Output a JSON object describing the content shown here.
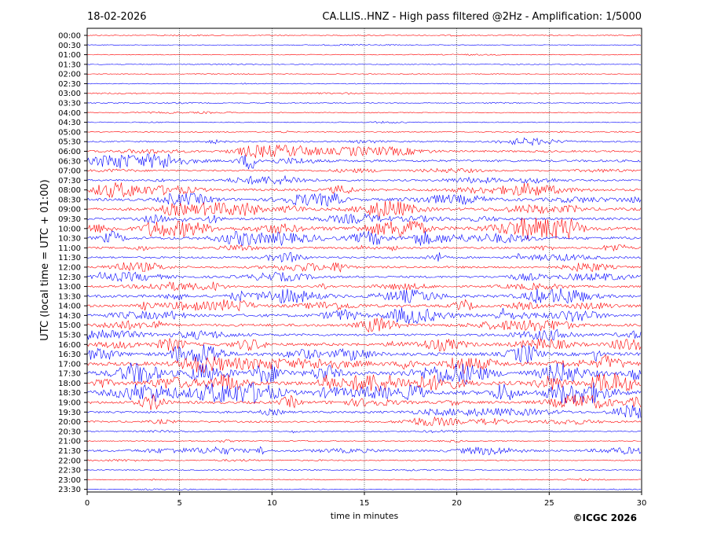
{
  "header": {
    "date": "18-02-2026",
    "title": "CA.LLIS..HNZ - High pass filtered @2Hz - Amplification: 1/5000"
  },
  "footer": {
    "copyright": "©ICGC 2026"
  },
  "chart_data": {
    "type": "line",
    "title": "CA.LLIS..HNZ - High pass filtered @2Hz - Amplification: 1/5000",
    "xlabel": "time in minutes",
    "ylabel": "UTC (local time = UTC + 01:00)",
    "xlim": [
      0,
      30
    ],
    "x_ticks": [
      "0",
      "5",
      "10",
      "15",
      "20",
      "25",
      "30"
    ],
    "x_grid": "dotted vertical lines at 5, 10, 15, 20, 25",
    "y_ticks": [
      "00:00",
      "00:30",
      "01:00",
      "01:30",
      "02:00",
      "02:30",
      "03:00",
      "03:30",
      "04:00",
      "04:30",
      "05:00",
      "05:30",
      "06:00",
      "06:30",
      "07:00",
      "07:30",
      "08:00",
      "08:30",
      "09:00",
      "09:30",
      "10:00",
      "10:30",
      "11:00",
      "11:30",
      "12:00",
      "12:30",
      "13:00",
      "13:30",
      "14:00",
      "14:30",
      "15:00",
      "15:30",
      "16:00",
      "16:30",
      "17:00",
      "17:30",
      "18:00",
      "18:30",
      "19:00",
      "19:30",
      "20:00",
      "20:30",
      "21:00",
      "21:30",
      "22:00",
      "22:30",
      "23:00",
      "23:30"
    ],
    "trace_colors": [
      "#ff0000",
      "#0000ff"
    ],
    "activity": [
      0.05,
      0.04,
      0.04,
      0.04,
      0.04,
      0.04,
      0.08,
      0.05,
      0.07,
      0.06,
      0.08,
      0.2,
      0.35,
      0.45,
      0.25,
      0.3,
      0.45,
      0.55,
      0.6,
      0.5,
      0.75,
      0.6,
      0.35,
      0.35,
      0.4,
      0.4,
      0.35,
      0.6,
      0.55,
      0.6,
      0.55,
      0.45,
      0.6,
      0.75,
      0.85,
      0.95,
      0.9,
      0.9,
      0.55,
      0.4,
      0.3,
      0.12,
      0.1,
      0.35,
      0.08,
      0.07,
      0.06,
      0.05
    ],
    "data_end_minute": [
      30,
      30,
      30,
      30,
      30,
      30,
      30,
      30,
      30,
      30,
      30,
      30,
      30,
      30,
      30,
      30,
      30,
      30,
      30,
      30,
      30,
      30,
      30,
      30,
      30,
      30,
      30,
      30,
      30,
      30,
      30,
      30,
      30,
      30,
      30,
      30,
      30,
      30,
      30,
      30,
      30,
      30,
      30,
      30,
      30,
      30,
      30,
      30
    ]
  }
}
